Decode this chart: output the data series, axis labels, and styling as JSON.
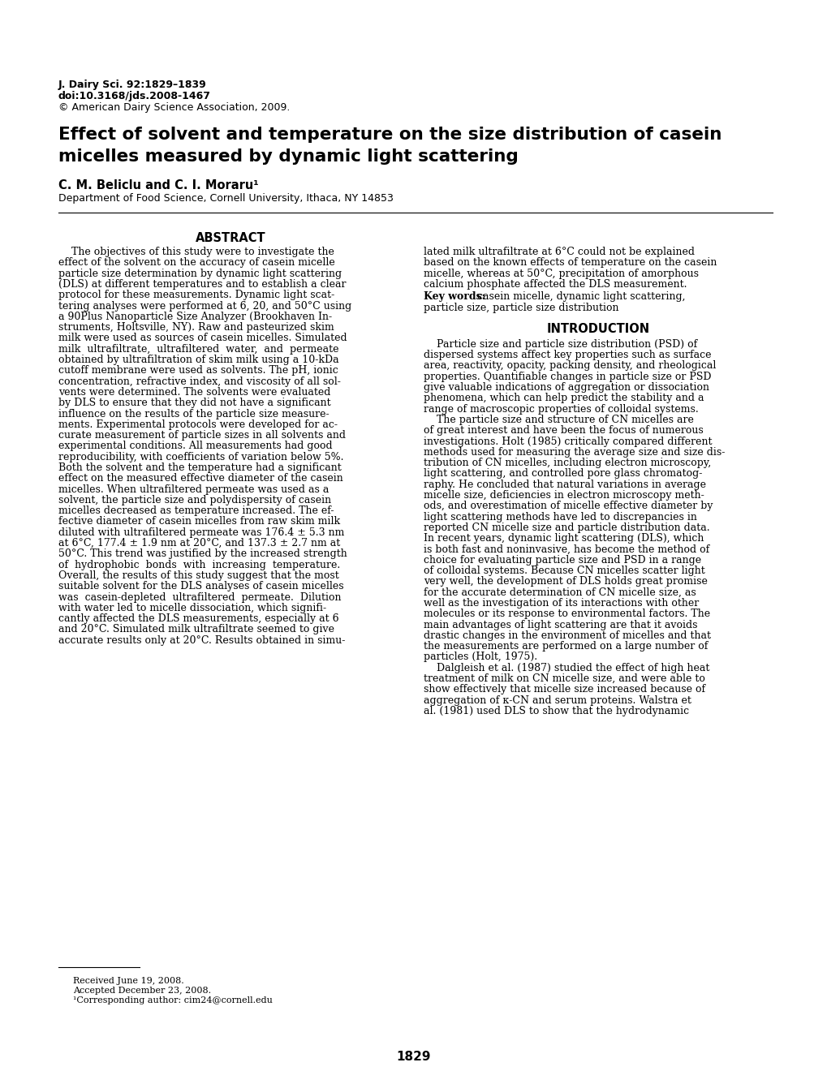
{
  "background_color": "#ffffff",
  "header_line1": "J. Dairy Sci. 92:1829–1839",
  "header_line2": "doi:10.3168/jds.2008-1467",
  "header_line3": "© American Dairy Science Association, 2009.",
  "title_line1": "Effect of solvent and temperature on the size distribution of casein",
  "title_line2": "micelles measured by dynamic light scattering",
  "authors": "C. M. Beliclu and C. I. Moraru¹",
  "affiliation": "Department of Food Science, Cornell University, Ithaca, NY 14853",
  "abstract_heading": "ABSTRACT",
  "abstract_col1_lines": [
    "    The objectives of this study were to investigate the",
    "effect of the solvent on the accuracy of casein micelle",
    "particle size determination by dynamic light scattering",
    "(DLS) at different temperatures and to establish a clear",
    "protocol for these measurements. Dynamic light scat-",
    "tering analyses were performed at 6, 20, and 50°C using",
    "a 90Plus Nanoparticle Size Analyzer (Brookhaven In-",
    "struments, Holtsville, NY). Raw and pasteurized skim",
    "milk were used as sources of casein micelles. Simulated",
    "milk  ultrafiltrate,  ultrafiltered  water,  and  permeate",
    "obtained by ultrafiltration of skim milk using a 10-kDa",
    "cutoff membrane were used as solvents. The pH, ionic",
    "concentration, refractive index, and viscosity of all sol-",
    "vents were determined. The solvents were evaluated",
    "by DLS to ensure that they did not have a significant",
    "influence on the results of the particle size measure-",
    "ments. Experimental protocols were developed for ac-",
    "curate measurement of particle sizes in all solvents and",
    "experimental conditions. All measurements had good",
    "reproducibility, with coefficients of variation below 5%.",
    "Both the solvent and the temperature had a significant",
    "effect on the measured effective diameter of the casein",
    "micelles. When ultrafiltered permeate was used as a",
    "solvent, the particle size and polydispersity of casein",
    "micelles decreased as temperature increased. The ef-",
    "fective diameter of casein micelles from raw skim milk",
    "diluted with ultrafiltered permeate was 176.4 ± 5.3 nm",
    "at 6°C, 177.4 ± 1.9 nm at 20°C, and 137.3 ± 2.7 nm at",
    "50°C. This trend was justified by the increased strength",
    "of  hydrophobic  bonds  with  increasing  temperature.",
    "Overall, the results of this study suggest that the most",
    "suitable solvent for the DLS analyses of casein micelles",
    "was  casein-depleted  ultrafiltered  permeate.  Dilution",
    "with water led to micelle dissociation, which signifi-",
    "cantly affected the DLS measurements, especially at 6",
    "and 20°C. Simulated milk ultrafiltrate seemed to give",
    "accurate results only at 20°C. Results obtained in simu-"
  ],
  "abstract_col2_lines": [
    "lated milk ultrafiltrate at 6°C could not be explained",
    "based on the known effects of temperature on the casein",
    "micelle, whereas at 50°C, precipitation of amorphous",
    "calcium phosphate affected the DLS measurement."
  ],
  "keywords_bold": "Key words:",
  "keywords_normal": "  casein micelle, dynamic light scattering,",
  "keywords_line2": "particle size, particle size distribution",
  "intro_heading": "INTRODUCTION",
  "intro_col2_lines": [
    "    Particle size and particle size distribution (PSD) of",
    "dispersed systems affect key properties such as surface",
    "area, reactivity, opacity, packing density, and rheological",
    "properties. Quantifiable changes in particle size or PSD",
    "give valuable indications of aggregation or dissociation",
    "phenomena, which can help predict the stability and a",
    "range of macroscopic properties of colloidal systems.",
    "    The particle size and structure of CN micelles are",
    "of great interest and have been the focus of numerous",
    "investigations. Holt (1985) critically compared different",
    "methods used for measuring the average size and size dis-",
    "tribution of CN micelles, including electron microscopy,",
    "light scattering, and controlled pore glass chromatog-",
    "raphy. He concluded that natural variations in average",
    "micelle size, deficiencies in electron microscopy meth-",
    "ods, and overestimation of micelle effective diameter by",
    "light scattering methods have led to discrepancies in",
    "reported CN micelle size and particle distribution data.",
    "In recent years, dynamic light scattering (DLS), which",
    "is both fast and noninvasive, has become the method of",
    "choice for evaluating particle size and PSD in a range",
    "of colloidal systems. Because CN micelles scatter light",
    "very well, the development of DLS holds great promise",
    "for the accurate determination of CN micelle size, as",
    "well as the investigation of its interactions with other",
    "molecules or its response to environmental factors. The",
    "main advantages of light scattering are that it avoids",
    "drastic changes in the environment of micelles and that",
    "the measurements are performed on a large number of",
    "particles (Holt, 1975).",
    "    Dalgleish et al. (1987) studied the effect of high heat",
    "treatment of milk on CN micelle size, and were able to",
    "show effectively that micelle size increased because of",
    "aggregation of κ-CN and serum proteins. Walstra et",
    "al. (1981) used DLS to show that the hydrodynamic"
  ],
  "footnote_received": "Received June 19, 2008.",
  "footnote_accepted": "Accepted December 23, 2008.",
  "footnote_corresponding": "¹Corresponding author: cim24@cornell.edu",
  "page_number": "1829"
}
